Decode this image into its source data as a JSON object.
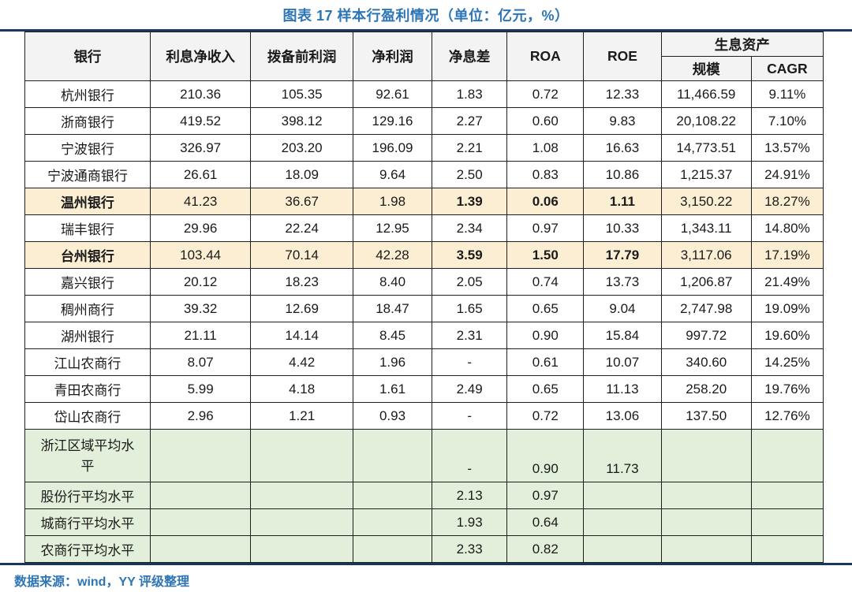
{
  "title": "图表 17 样本行盈利情况（单位：亿元，%）",
  "source": "数据来源：wind，YY 评级整理",
  "colors": {
    "accent_blue": "#2E75B6",
    "rule_navy": "#17375E",
    "highlight_row": "#FBEED3",
    "summary_row": "#E2EFDA",
    "header_fill": "#F3F3F3",
    "border": "#1f1f1f"
  },
  "table": {
    "columns": [
      "银行",
      "利息净收入",
      "拨备前利润",
      "净利润",
      "净息差",
      "ROA",
      "ROE"
    ],
    "group_header": {
      "label": "生息资产",
      "sub": [
        "规模",
        "CAGR"
      ]
    },
    "rows": [
      {
        "name": "杭州银行",
        "style": "normal",
        "values": [
          "210.36",
          "105.35",
          "92.61",
          "1.83",
          "0.72",
          "12.33",
          "11,466.59",
          "9.11%"
        ]
      },
      {
        "name": "浙商银行",
        "style": "normal",
        "values": [
          "419.52",
          "398.12",
          "129.16",
          "2.27",
          "0.60",
          "9.83",
          "20,108.22",
          "7.10%"
        ]
      },
      {
        "name": "宁波银行",
        "style": "normal",
        "values": [
          "326.97",
          "203.20",
          "196.09",
          "2.21",
          "1.08",
          "16.63",
          "14,773.51",
          "13.57%"
        ]
      },
      {
        "name": "宁波通商银行",
        "style": "normal",
        "values": [
          "26.61",
          "18.09",
          "9.64",
          "2.50",
          "0.83",
          "10.86",
          "1,215.37",
          "24.91%"
        ]
      },
      {
        "name": "温州银行",
        "style": "highlight",
        "values": [
          "41.23",
          "36.67",
          "1.98",
          "1.39",
          "0.06",
          "1.11",
          "3,150.22",
          "18.27%"
        ]
      },
      {
        "name": "瑞丰银行",
        "style": "normal",
        "values": [
          "29.96",
          "22.24",
          "12.95",
          "2.34",
          "0.97",
          "10.33",
          "1,343.11",
          "14.80%"
        ]
      },
      {
        "name": "台州银行",
        "style": "highlight",
        "values": [
          "103.44",
          "70.14",
          "42.28",
          "3.59",
          "1.50",
          "17.79",
          "3,117.06",
          "17.19%"
        ]
      },
      {
        "name": "嘉兴银行",
        "style": "normal",
        "values": [
          "20.12",
          "18.23",
          "8.40",
          "2.05",
          "0.74",
          "13.73",
          "1,206.87",
          "21.49%"
        ]
      },
      {
        "name": "稠州商行",
        "style": "normal",
        "values": [
          "39.32",
          "12.69",
          "18.47",
          "1.65",
          "0.65",
          "9.04",
          "2,747.98",
          "19.09%"
        ]
      },
      {
        "name": "湖州银行",
        "style": "normal",
        "values": [
          "21.11",
          "14.14",
          "8.45",
          "2.31",
          "0.90",
          "15.84",
          "997.72",
          "19.60%"
        ]
      },
      {
        "name": "江山农商行",
        "style": "normal",
        "values": [
          "8.07",
          "4.42",
          "1.96",
          "-",
          "0.61",
          "10.07",
          "340.60",
          "14.25%"
        ]
      },
      {
        "name": "青田农商行",
        "style": "normal",
        "values": [
          "5.99",
          "4.18",
          "1.61",
          "2.49",
          "0.65",
          "11.13",
          "258.20",
          "19.76%"
        ]
      },
      {
        "name": "岱山农商行",
        "style": "normal",
        "values": [
          "2.96",
          "1.21",
          "0.93",
          "-",
          "0.72",
          "13.06",
          "137.50",
          "12.76%"
        ]
      },
      {
        "name": "浙江区域平均水平",
        "style": "summary",
        "tall": true,
        "values": [
          "",
          "",
          "",
          "-",
          "0.90",
          "11.73",
          "",
          ""
        ]
      },
      {
        "name": "股份行平均水平",
        "style": "summary",
        "values": [
          "",
          "",
          "",
          "2.13",
          "0.97",
          "",
          "",
          ""
        ]
      },
      {
        "name": "城商行平均水平",
        "style": "summary",
        "values": [
          "",
          "",
          "",
          "1.93",
          "0.64",
          "",
          "",
          ""
        ]
      },
      {
        "name": "农商行平均水平",
        "style": "summary",
        "values": [
          "",
          "",
          "",
          "2.33",
          "0.82",
          "",
          "",
          ""
        ]
      }
    ],
    "col_widths_pct": [
      15.7,
      12.6,
      12.8,
      9.9,
      9.4,
      9.6,
      9.7,
      11.3,
      9.0
    ]
  }
}
